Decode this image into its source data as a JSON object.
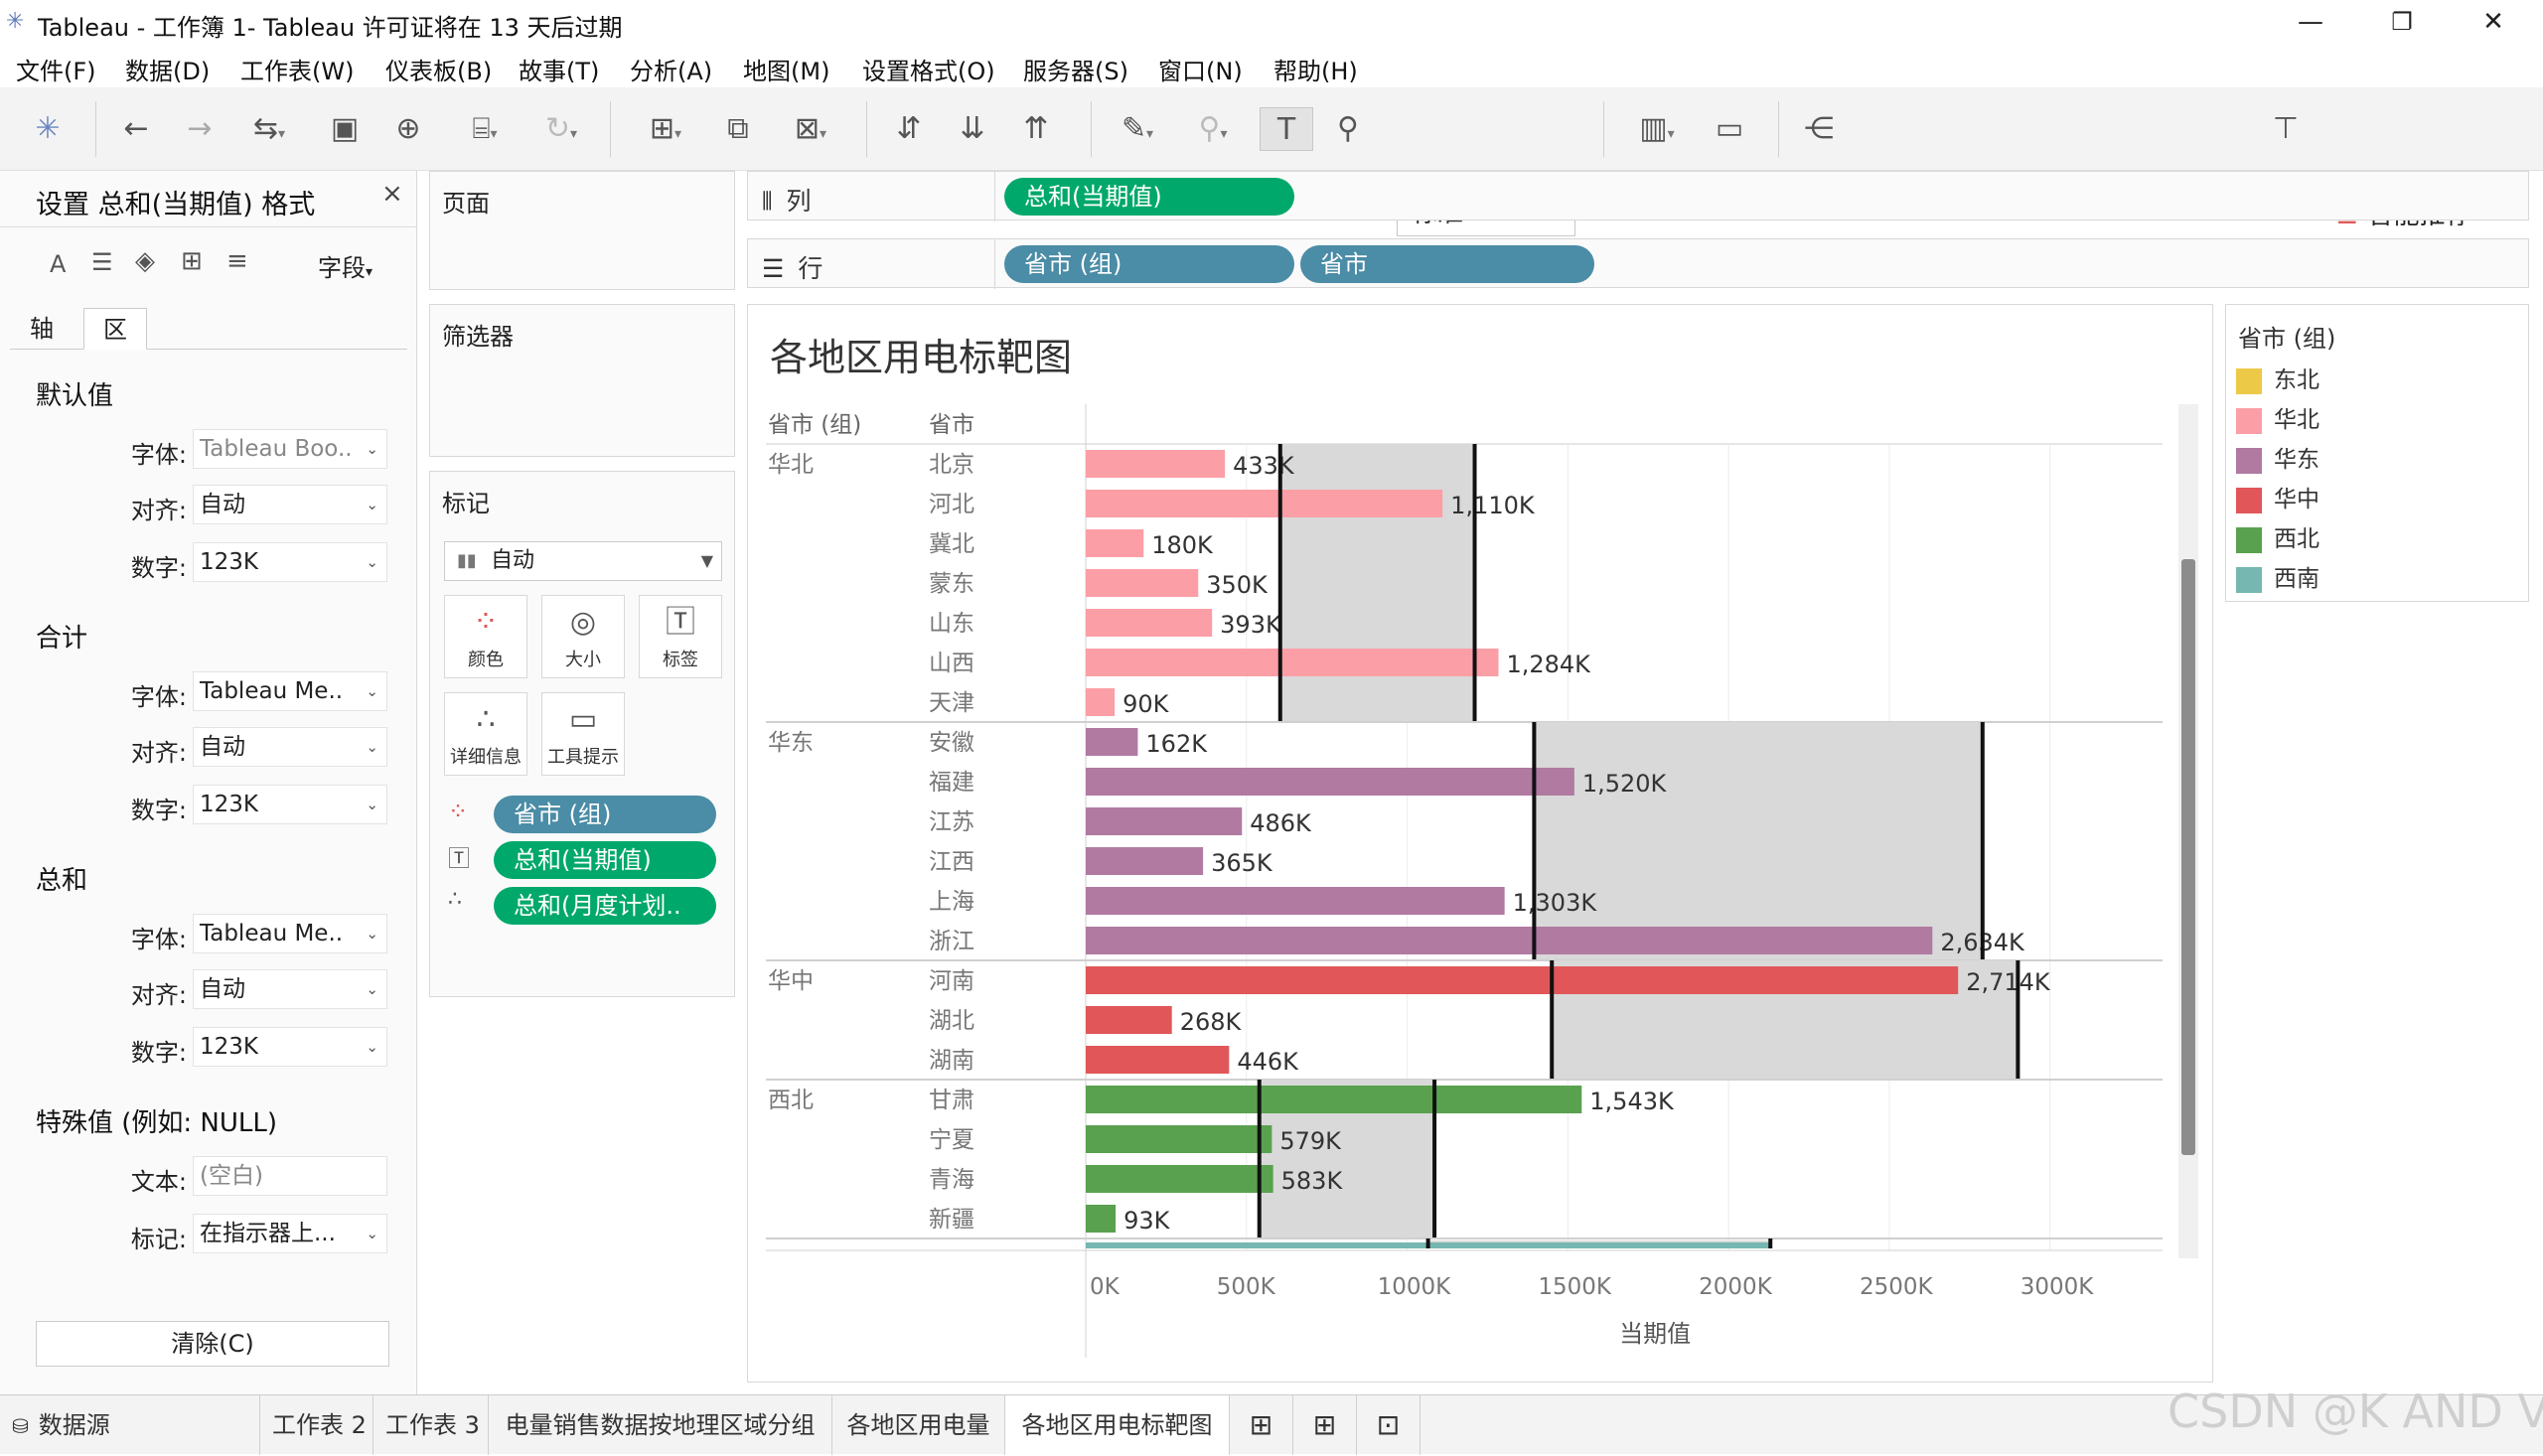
{
  "window": {
    "title": "Tableau - 工作簿 1- Tableau 许可证将在 13 天后过期",
    "minimize": "—",
    "restore": "❐",
    "close": "✕"
  },
  "menu": [
    "文件(F)",
    "数据(D)",
    "工作表(W)",
    "仪表板(B)",
    "故事(T)",
    "分析(A)",
    "地图(M)",
    "设置格式(O)",
    "服务器(S)",
    "窗口(N)",
    "帮助(H)"
  ],
  "toolbar": {
    "fit_select": "标准",
    "smart_recommend": "智能推荐"
  },
  "format_pane": {
    "title": "设置 总和(当期值) 格式",
    "close": "×",
    "field_dropdown": "字段",
    "tabs": [
      "轴",
      "区"
    ],
    "active_tab": "区",
    "sections": [
      {
        "heading": "默认值",
        "rows": [
          {
            "label": "字体:",
            "value": "Tableau Boo.."
          },
          {
            "label": "对齐:",
            "value": "自动"
          },
          {
            "label": "数字:",
            "value": "123K"
          }
        ]
      },
      {
        "heading": "合计",
        "rows": [
          {
            "label": "字体:",
            "value": "Tableau Me.."
          },
          {
            "label": "对齐:",
            "value": "自动"
          },
          {
            "label": "数字:",
            "value": "123K"
          }
        ]
      },
      {
        "heading": "总和",
        "rows": [
          {
            "label": "字体:",
            "value": "Tableau Me.."
          },
          {
            "label": "对齐:",
            "value": "自动"
          },
          {
            "label": "数字:",
            "value": "123K"
          }
        ]
      }
    ],
    "special": {
      "heading": "特殊值 (例如: NULL)",
      "text_label": "文本:",
      "text_placeholder": "(空白)",
      "mark_label": "标记:",
      "mark_value": "在指示器上..."
    },
    "clear_button": "清除(C)"
  },
  "cards": {
    "pages": "页面",
    "filters": "筛选器",
    "marks": "标记",
    "mark_type": "自动",
    "mark_buttons": [
      "颜色",
      "大小",
      "标签",
      "详细信息",
      "工具提示"
    ],
    "mark_pills": [
      "省市 (组)",
      "总和(当期值)",
      "总和(月度计划.."
    ]
  },
  "shelves": {
    "columns_label": "列",
    "rows_label": "行",
    "columns_pills": [
      "总和(当期值)"
    ],
    "rows_pills": [
      "省市 (组)",
      "省市"
    ]
  },
  "viz": {
    "title": "各地区用电标靶图",
    "header_group": "省市 (组)",
    "header_province": "省市"
  },
  "chart_data": {
    "type": "bar",
    "title": "各地区用电标靶图",
    "xlabel": "当期值",
    "ylabel": "",
    "xlim": [
      0,
      3350000
    ],
    "x_ticks": [
      0,
      500000,
      1000000,
      1500000,
      2000000,
      2500000,
      3000000
    ],
    "x_tick_labels": [
      "0K",
      "500K",
      "1000K",
      "1500K",
      "2000K",
      "2500K",
      "3000K"
    ],
    "groups": [
      {
        "name": "华北",
        "color": "#fb9ea6",
        "rows": [
          {
            "province": "北京",
            "value": 433000,
            "label": "433K"
          },
          {
            "province": "河北",
            "value": 1110000,
            "label": "1,110K"
          },
          {
            "province": "冀北",
            "value": 180000,
            "label": "180K"
          },
          {
            "province": "蒙东",
            "value": 350000,
            "label": "350K"
          },
          {
            "province": "山东",
            "value": 393000,
            "label": "393K"
          },
          {
            "province": "山西",
            "value": 1284000,
            "label": "1,284K"
          },
          {
            "province": "天津",
            "value": 90000,
            "label": "90K"
          }
        ],
        "reference": {
          "band": [
            605000,
            1210000
          ],
          "lines": [
            605000,
            1210000
          ]
        }
      },
      {
        "name": "华东",
        "color": "#b07aa1",
        "rows": [
          {
            "province": "安徽",
            "value": 162000,
            "label": "162K"
          },
          {
            "province": "福建",
            "value": 1520000,
            "label": "1,520K"
          },
          {
            "province": "江苏",
            "value": 486000,
            "label": "486K"
          },
          {
            "province": "江西",
            "value": 365000,
            "label": "365K"
          },
          {
            "province": "上海",
            "value": 1303000,
            "label": "1,303K"
          },
          {
            "province": "浙江",
            "value": 2634000,
            "label": "2,634K"
          }
        ],
        "reference": {
          "band": [
            1395000,
            2790000
          ],
          "lines": [
            1395000,
            2790000
          ]
        }
      },
      {
        "name": "华中",
        "color": "#e15759",
        "rows": [
          {
            "province": "河南",
            "value": 2714000,
            "label": "2,714K"
          },
          {
            "province": "湖北",
            "value": 268000,
            "label": "268K"
          },
          {
            "province": "湖南",
            "value": 446000,
            "label": "446K"
          }
        ],
        "reference": {
          "band": [
            1450000,
            2900000
          ],
          "lines": [
            1450000,
            2900000
          ]
        }
      },
      {
        "name": "西北",
        "color": "#59a14f",
        "rows": [
          {
            "province": "甘肃",
            "value": 1543000,
            "label": "1,543K"
          },
          {
            "province": "宁夏",
            "value": 579000,
            "label": "579K"
          },
          {
            "province": "青海",
            "value": 583000,
            "label": "583K"
          },
          {
            "province": "新疆",
            "value": 93000,
            "label": "93K"
          }
        ],
        "reference": {
          "band": [
            540000,
            1085000
          ],
          "lines": [
            540000,
            1085000
          ]
        }
      }
    ],
    "partial_next_group": {
      "color": "#76b7b2",
      "value": 2130000,
      "reference_lines": [
        1065000,
        2130000
      ]
    }
  },
  "legend": {
    "title": "省市 (组)",
    "items": [
      {
        "label": "东北",
        "color": "#edc948"
      },
      {
        "label": "华北",
        "color": "#fb9ea6"
      },
      {
        "label": "华东",
        "color": "#b07aa1"
      },
      {
        "label": "华中",
        "color": "#e15759"
      },
      {
        "label": "西北",
        "color": "#59a14f"
      },
      {
        "label": "西南",
        "color": "#76b7b2"
      }
    ]
  },
  "sheet_tabs": [
    "数据源",
    "工作表 2",
    "工作表 3",
    "电量销售数据按地理区域分组",
    "各地区用电量",
    "各地区用电标靶图"
  ],
  "active_sheet": "各地区用电标靶图",
  "watermark": "CSDN @K AND V"
}
